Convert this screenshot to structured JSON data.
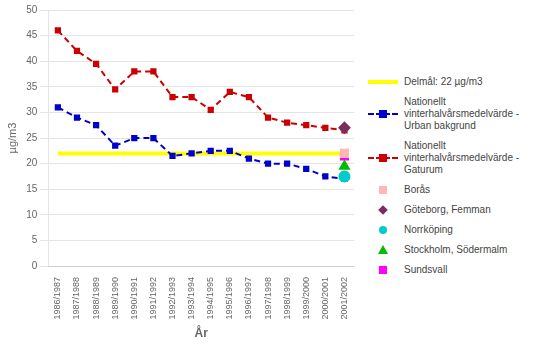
{
  "chart_data": {
    "type": "line",
    "xlabel": "År",
    "ylabel": "µg/m3",
    "categories": [
      "1986/1987",
      "1987/1988",
      "1988/1989",
      "1989/1990",
      "1990/1991",
      "1991/1992",
      "1992/1993",
      "1993/1994",
      "1994/1995",
      "1995/1996",
      "1996/1997",
      "1997/1998",
      "1998/1999",
      "1999/2000",
      "2000/2001",
      "2001/2002"
    ],
    "series": [
      {
        "name": "Delmål: 22 µg/m3",
        "color": "#FFFF00",
        "line_style": "solid",
        "values": [
          22,
          22,
          22,
          22,
          22,
          22,
          22,
          22,
          22,
          22,
          22,
          22,
          22,
          22,
          22,
          22
        ]
      },
      {
        "name": "Nationellt\nvinterhalvårsmedelvärde -\nUrban bakgrund",
        "color": "#0000CC",
        "line_style": "dashed",
        "marker": "square",
        "values": [
          31,
          29,
          27.5,
          23.5,
          25,
          25,
          21.5,
          22,
          22.5,
          22.5,
          21,
          20,
          20,
          19,
          17.5,
          17
        ]
      },
      {
        "name": "Nationellt\nvinterhalvårsmedelvärde -\nGaturum",
        "color": "#CC0000",
        "line_style": "dashed",
        "marker": "square",
        "values": [
          46,
          42,
          39.5,
          34.5,
          38,
          38,
          33,
          33,
          30.5,
          34,
          33,
          29,
          28,
          27.5,
          27,
          26.5
        ]
      },
      {
        "name": "Borås",
        "type": "scatter",
        "color": "#FFB6B6",
        "marker": "square",
        "values": [
          null,
          null,
          null,
          null,
          null,
          null,
          null,
          null,
          null,
          null,
          null,
          null,
          null,
          null,
          null,
          22.0
        ]
      },
      {
        "name": "Göteborg, Femman",
        "type": "scatter",
        "color": "#7B2D5E",
        "marker": "diamond",
        "values": [
          null,
          null,
          null,
          null,
          null,
          null,
          null,
          null,
          null,
          null,
          null,
          null,
          null,
          null,
          null,
          27.0
        ]
      },
      {
        "name": "Norrköping",
        "type": "scatter",
        "color": "#00CCCC",
        "marker": "circle",
        "values": [
          null,
          null,
          null,
          null,
          null,
          null,
          null,
          null,
          null,
          null,
          null,
          null,
          null,
          null,
          null,
          17.5
        ]
      },
      {
        "name": "Stockholm, Södermalm",
        "type": "scatter",
        "color": "#00BB00",
        "marker": "triangle",
        "values": [
          null,
          null,
          null,
          null,
          null,
          null,
          null,
          null,
          null,
          null,
          null,
          null,
          null,
          null,
          null,
          19.5
        ]
      },
      {
        "name": "Sundsvall",
        "type": "scatter",
        "color": "#FF00FF",
        "marker": "square",
        "values": [
          null,
          null,
          null,
          null,
          null,
          null,
          null,
          null,
          null,
          null,
          null,
          null,
          null,
          null,
          null,
          21.5
        ]
      }
    ],
    "ylim": [
      0,
      50
    ],
    "yticks": [
      0,
      5,
      10,
      15,
      20,
      25,
      30,
      35,
      40,
      45,
      50
    ],
    "grid": true,
    "legend": "right"
  }
}
